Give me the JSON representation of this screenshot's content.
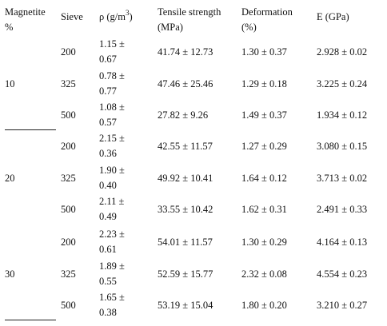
{
  "headers": {
    "magnetite_line1": "Magnetite",
    "magnetite_line2": "%",
    "sieve": "Sieve",
    "rho_prefix": "ρ (g/m",
    "rho_sup": "3",
    "rho_suffix": ")",
    "tensile_line1": "Tensile strength",
    "tensile_line2": "(MPa)",
    "deformation_line1": "Deformation",
    "deformation_line2": "(%)",
    "modulus": "E (GPa)"
  },
  "groups": [
    {
      "magnetite": "10",
      "rows": [
        {
          "sieve": "200",
          "rho_l1": "1.15 ±",
          "rho_l2": "0.67",
          "tensile": "41.74 ± 12.73",
          "deformation": "1.30 ± 0.37",
          "modulus": "2.928 ± 0.02"
        },
        {
          "sieve": "325",
          "rho_l1": "0.78 ±",
          "rho_l2": "0.77",
          "tensile": "47.46 ± 25.46",
          "deformation": "1.29 ± 0.18",
          "modulus": "3.225 ± 0.24"
        },
        {
          "sieve": "500",
          "rho_l1": "1.08 ±",
          "rho_l2": "0.57",
          "tensile": "27.82 ± 9.26",
          "deformation": "1.49 ± 0.37",
          "modulus": "1.934 ± 0.12"
        }
      ]
    },
    {
      "magnetite": "20",
      "rows": [
        {
          "sieve": "200",
          "rho_l1": "2.15 ±",
          "rho_l2": "0.36",
          "tensile": "42.55 ± 11.57",
          "deformation": "1.27 ± 0.29",
          "modulus": "3.080 ± 0.15"
        },
        {
          "sieve": "325",
          "rho_l1": "1.90 ±",
          "rho_l2": "0.40",
          "tensile": "49.92 ± 10.41",
          "deformation": "1.64 ± 0.12",
          "modulus": "3.713 ± 0.02"
        },
        {
          "sieve": "500",
          "rho_l1": "2.11 ±",
          "rho_l2": "0.49",
          "tensile": "33.55 ± 10.42",
          "deformation": "1.62 ± 0.31",
          "modulus": "2.491 ± 0.33"
        }
      ]
    },
    {
      "magnetite": "30",
      "rows": [
        {
          "sieve": "200",
          "rho_l1": "2.23 ±",
          "rho_l2": "0.61",
          "tensile": "54.01 ± 11.57",
          "deformation": "1.30 ± 0.29",
          "modulus": "4.164 ± 0.13"
        },
        {
          "sieve": "325",
          "rho_l1": "1.89 ±",
          "rho_l2": "0.55",
          "tensile": "52.59 ± 15.77",
          "deformation": "2.32 ± 0.08",
          "modulus": "4.554 ± 0.23"
        },
        {
          "sieve": "500",
          "rho_l1": "1.65 ±",
          "rho_l2": "0.38",
          "tensile": "53.19 ± 15.04",
          "deformation": "1.80 ± 0.20",
          "modulus": "3.210 ± 0.27"
        }
      ]
    }
  ]
}
